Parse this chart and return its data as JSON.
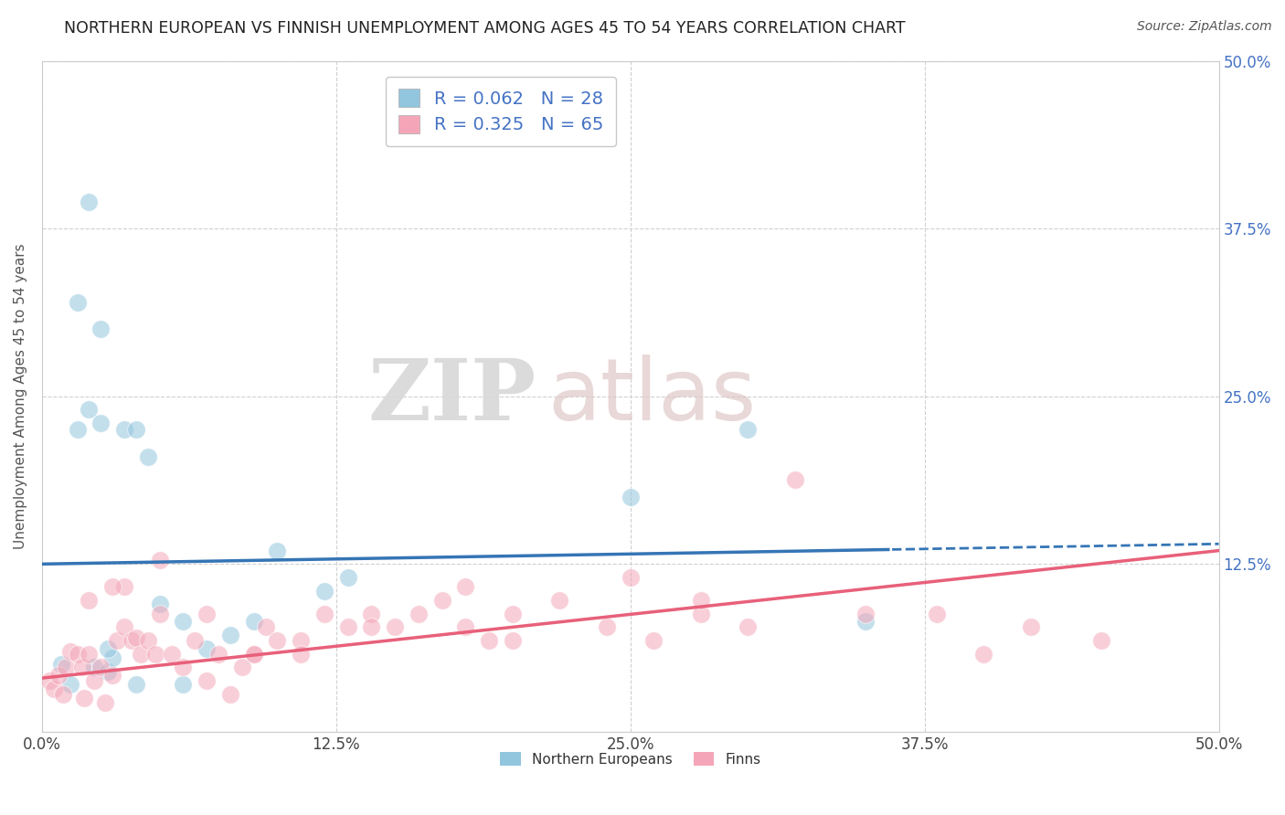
{
  "title": "NORTHERN EUROPEAN VS FINNISH UNEMPLOYMENT AMONG AGES 45 TO 54 YEARS CORRELATION CHART",
  "source": "Source: ZipAtlas.com",
  "ylabel": "Unemployment Among Ages 45 to 54 years",
  "xlim": [
    0,
    0.5
  ],
  "ylim": [
    0,
    0.5
  ],
  "xticks": [
    0.0,
    0.125,
    0.25,
    0.375,
    0.5
  ],
  "xticklabels": [
    "0.0%",
    "12.5%",
    "25.0%",
    "37.5%",
    "50.0%"
  ],
  "yticks": [
    0.0,
    0.125,
    0.25,
    0.375,
    0.5
  ],
  "yticklabels_right": [
    "",
    "12.5%",
    "25.0%",
    "37.5%",
    "50.0%"
  ],
  "blue_R": 0.062,
  "blue_N": 28,
  "pink_R": 0.325,
  "pink_N": 65,
  "blue_color": "#92c5de",
  "pink_color": "#f4a6b8",
  "blue_line_color": "#3575b5",
  "pink_line_color": "#e8607a",
  "watermark_zip": "ZIP",
  "watermark_atlas": "atlas",
  "background_color": "#ffffff",
  "grid_color": "#d0d0d0",
  "title_fontsize": 12.5,
  "label_fontsize": 11,
  "tick_fontsize": 12,
  "right_tick_color": "#4472c4",
  "legend_label_blue": "Northern Europeans",
  "legend_label_pink": "Finns",
  "blue_line_intercept": 0.125,
  "blue_line_slope": 0.03,
  "blue_line_solid_end": 0.36,
  "pink_line_intercept": 0.04,
  "pink_line_slope": 0.19,
  "blue_scatter_x": [
    0.008,
    0.012,
    0.015,
    0.02,
    0.022,
    0.025,
    0.028,
    0.03,
    0.035,
    0.04,
    0.045,
    0.05,
    0.06,
    0.07,
    0.08,
    0.1,
    0.12,
    0.13,
    0.02,
    0.025,
    0.028,
    0.04,
    0.25,
    0.3,
    0.35,
    0.06,
    0.09,
    0.015
  ],
  "blue_scatter_y": [
    0.05,
    0.035,
    0.225,
    0.24,
    0.048,
    0.23,
    0.045,
    0.055,
    0.225,
    0.035,
    0.205,
    0.095,
    0.035,
    0.062,
    0.072,
    0.135,
    0.105,
    0.115,
    0.395,
    0.3,
    0.062,
    0.225,
    0.175,
    0.225,
    0.082,
    0.082,
    0.082,
    0.32
  ],
  "pink_scatter_x": [
    0.003,
    0.005,
    0.007,
    0.009,
    0.01,
    0.012,
    0.015,
    0.017,
    0.018,
    0.02,
    0.022,
    0.025,
    0.027,
    0.03,
    0.032,
    0.035,
    0.038,
    0.04,
    0.042,
    0.045,
    0.048,
    0.05,
    0.055,
    0.06,
    0.065,
    0.07,
    0.075,
    0.08,
    0.085,
    0.09,
    0.095,
    0.1,
    0.11,
    0.12,
    0.13,
    0.14,
    0.15,
    0.16,
    0.17,
    0.18,
    0.19,
    0.2,
    0.22,
    0.24,
    0.26,
    0.28,
    0.3,
    0.35,
    0.4,
    0.42,
    0.02,
    0.035,
    0.05,
    0.07,
    0.09,
    0.11,
    0.14,
    0.18,
    0.2,
    0.25,
    0.28,
    0.32,
    0.38,
    0.45,
    0.03
  ],
  "pink_scatter_y": [
    0.038,
    0.032,
    0.042,
    0.028,
    0.048,
    0.06,
    0.058,
    0.048,
    0.025,
    0.058,
    0.038,
    0.048,
    0.022,
    0.042,
    0.068,
    0.078,
    0.068,
    0.07,
    0.058,
    0.068,
    0.058,
    0.088,
    0.058,
    0.048,
    0.068,
    0.038,
    0.058,
    0.028,
    0.048,
    0.058,
    0.078,
    0.068,
    0.068,
    0.088,
    0.078,
    0.088,
    0.078,
    0.088,
    0.098,
    0.108,
    0.068,
    0.088,
    0.098,
    0.078,
    0.068,
    0.088,
    0.078,
    0.088,
    0.058,
    0.078,
    0.098,
    0.108,
    0.128,
    0.088,
    0.058,
    0.058,
    0.078,
    0.078,
    0.068,
    0.115,
    0.098,
    0.188,
    0.088,
    0.068,
    0.108
  ]
}
